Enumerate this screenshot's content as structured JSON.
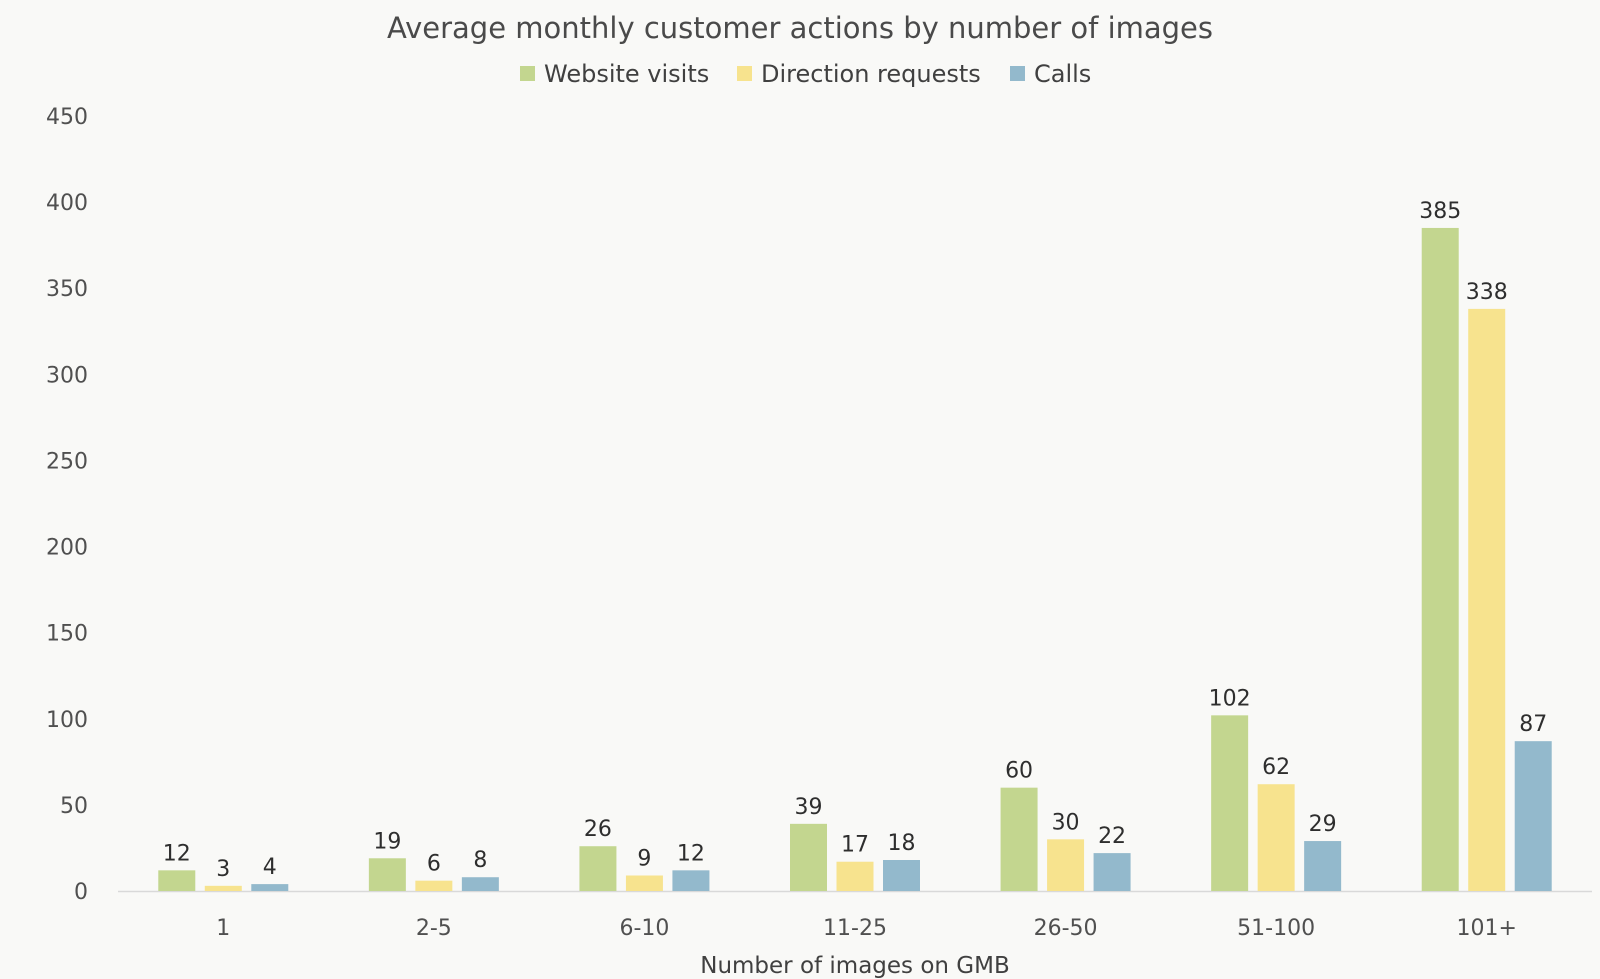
{
  "chart_data": {
    "type": "bar",
    "title": "Average monthly customer actions by number of images",
    "xlabel": "Number of images on GMB",
    "ylabel": "",
    "categories": [
      "1",
      "2-5",
      "6-10",
      "11-25",
      "26-50",
      "51-100",
      "101+"
    ],
    "series": [
      {
        "name": "Website visits",
        "color": "#c3d68f",
        "values": [
          12,
          19,
          26,
          39,
          60,
          102,
          385
        ]
      },
      {
        "name": "Direction requests",
        "color": "#f7e38e",
        "values": [
          3,
          6,
          9,
          17,
          30,
          62,
          338
        ]
      },
      {
        "name": "Calls",
        "color": "#93b9cc",
        "values": [
          4,
          8,
          12,
          18,
          22,
          29,
          87
        ]
      }
    ],
    "ylim": [
      0,
      450
    ],
    "yticks": [
      0,
      50,
      100,
      150,
      200,
      250,
      300,
      350,
      400,
      450
    ],
    "grid": false,
    "legend_position": "top-center",
    "data_labels": true
  }
}
